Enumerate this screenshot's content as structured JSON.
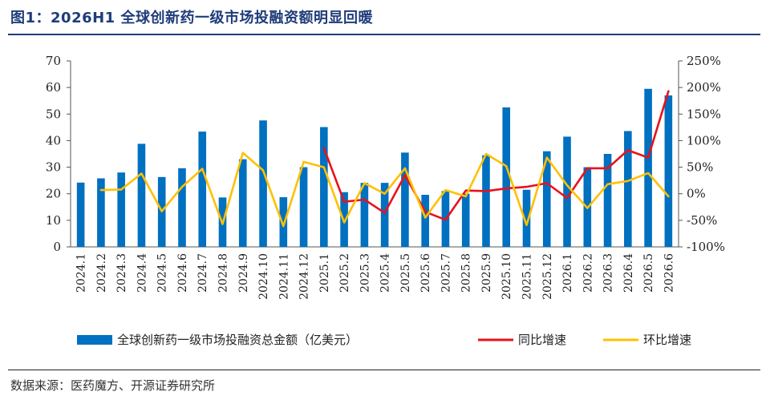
{
  "title": "图1：2026H1 全球创新药一级市场投融资额明显回暖",
  "source": "数据来源：医药魔方、开源证券研究所",
  "colors": {
    "bar": "#0070c0",
    "yoy": "#e8121b",
    "mom": "#ffc000",
    "title": "#1f3c7a"
  },
  "chart_data": {
    "type": "bar",
    "categories": [
      "2024.1",
      "2024.2",
      "2024.3",
      "2024.4",
      "2024.5",
      "2024.6",
      "2024.7",
      "2024.8",
      "2024.9",
      "2024.10",
      "2024.11",
      "2024.12",
      "2025.1",
      "2025.2",
      "2025.3",
      "2025.4",
      "2025.5",
      "2025.6",
      "2025.7",
      "2025.8",
      "2025.9",
      "2025.10",
      "2025.11",
      "2025.12",
      "2026.1",
      "2026.2",
      "2026.3",
      "2026.4",
      "2026.5",
      "2026.6"
    ],
    "left_axis": {
      "ylim": [
        0,
        70
      ],
      "ticks": [
        "0",
        "10",
        "20",
        "30",
        "40",
        "50",
        "60",
        "70"
      ]
    },
    "right_axis": {
      "ylim": [
        -100,
        250
      ],
      "ticks": [
        "-100%",
        "-50%",
        "0%",
        "50%",
        "100%",
        "150%",
        "200%",
        "250%"
      ]
    },
    "series": [
      {
        "name": "全球创新药一级市场投融资总金额（亿美元）",
        "kind": "bar",
        "axis": "left",
        "values": [
          24.2,
          25.8,
          28.0,
          38.8,
          26.3,
          29.6,
          43.4,
          18.6,
          33.0,
          47.6,
          18.7,
          30.0,
          45.1,
          20.6,
          24.1,
          24.1,
          35.5,
          19.6,
          21.0,
          20.0,
          34.5,
          52.5,
          21.5,
          36.0,
          41.5,
          30.0,
          35.0,
          43.6,
          59.5,
          57.0
        ]
      },
      {
        "name": "同比增速",
        "kind": "line",
        "axis": "right",
        "values": [
          null,
          null,
          null,
          null,
          null,
          null,
          null,
          null,
          null,
          null,
          null,
          null,
          86,
          -15,
          -11,
          -36,
          35,
          -34,
          -49,
          6,
          5,
          10,
          13,
          20,
          -8,
          48,
          48,
          82,
          68,
          193
        ]
      },
      {
        "name": "环比增速",
        "kind": "line",
        "axis": "right",
        "values": [
          null,
          7,
          8,
          38,
          -33,
          13,
          47,
          -57,
          77,
          44,
          -61,
          60,
          50,
          -54,
          20,
          0,
          48,
          -45,
          7,
          -5,
          75,
          52,
          -59,
          68,
          16,
          -27,
          18,
          24,
          39,
          -5
        ]
      }
    ],
    "legend": [
      {
        "label": "全球创新药一级市场投融资总金额（亿美元）",
        "kind": "bar"
      },
      {
        "label": "同比增速",
        "kind": "line"
      },
      {
        "label": "环比增速",
        "kind": "line"
      }
    ],
    "legend_position": "bottom"
  }
}
